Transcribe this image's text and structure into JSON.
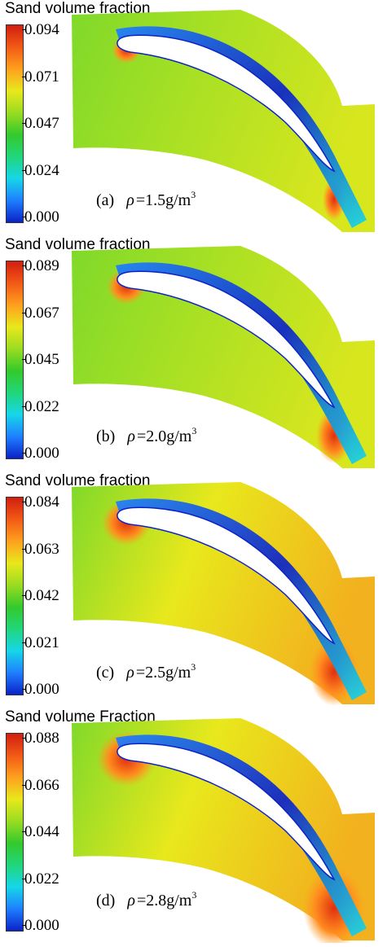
{
  "panels": [
    {
      "title": "Sand volume fraction",
      "ticks": [
        "0.094",
        "0.071",
        "0.047",
        "0.024",
        "0.000"
      ],
      "caption_letter": "(a)",
      "rho_symbol": "ρ",
      "density": "=1.5g/m",
      "unit_exp": "3"
    },
    {
      "title": "Sand volume fraction",
      "ticks": [
        "0.089",
        "0.067",
        "0.045",
        "0.022",
        "0.000"
      ],
      "caption_letter": "(b)",
      "rho_symbol": "ρ",
      "density": "=2.0g/m",
      "unit_exp": "3"
    },
    {
      "title": "Sand volume fraction",
      "ticks": [
        "0.084",
        "0.063",
        "0.042",
        "0.021",
        "0.000"
      ],
      "caption_letter": "(c)",
      "rho_symbol": "ρ",
      "density": "=2.5g/m",
      "unit_exp": "3"
    },
    {
      "title": "Sand volume Fraction",
      "ticks": [
        "0.088",
        "0.066",
        "0.044",
        "0.022",
        "0.000"
      ],
      "caption_letter": "(d)",
      "rho_symbol": "ρ",
      "density": "=2.8g/m",
      "unit_exp": "3"
    }
  ],
  "colormap": [
    "#0b22c8",
    "#1e7fff",
    "#17d6e8",
    "#21d67a",
    "#34c92c",
    "#9adc21",
    "#e8e81c",
    "#ffa01e",
    "#f25a16",
    "#d21e10"
  ]
}
